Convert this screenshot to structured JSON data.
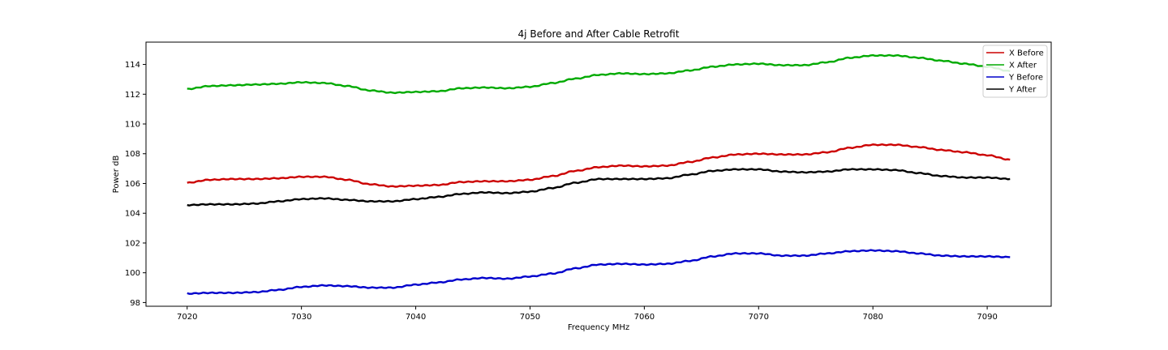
{
  "chart_data": {
    "type": "line",
    "title": "4j Before and After Cable Retrofit",
    "xlabel": "Frequency MHz",
    "ylabel": "Power dB",
    "xlim": [
      7016.4,
      7095.6
    ],
    "ylim": [
      97.75,
      115.5
    ],
    "xticks": [
      7020,
      7030,
      7040,
      7050,
      7060,
      7070,
      7080,
      7090
    ],
    "yticks": [
      98,
      100,
      102,
      104,
      106,
      108,
      110,
      112,
      114
    ],
    "grid": false,
    "legend_position": "top-right",
    "x": [
      7020,
      7022,
      7024,
      7026,
      7028,
      7030,
      7032,
      7034,
      7036,
      7038,
      7040,
      7042,
      7044,
      7046,
      7048,
      7050,
      7052,
      7054,
      7056,
      7058,
      7060,
      7062,
      7064,
      7066,
      7068,
      7070,
      7072,
      7074,
      7076,
      7078,
      7080,
      7082,
      7084,
      7086,
      7088,
      7090,
      7092
    ],
    "series": [
      {
        "name": "X Before",
        "color": "#cc0000",
        "values": [
          106.05,
          106.25,
          106.3,
          106.3,
          106.35,
          106.45,
          106.45,
          106.25,
          105.95,
          105.8,
          105.85,
          105.9,
          106.1,
          106.15,
          106.15,
          106.25,
          106.5,
          106.85,
          107.1,
          107.2,
          107.15,
          107.2,
          107.45,
          107.75,
          107.95,
          108.0,
          107.95,
          107.95,
          108.1,
          108.4,
          108.6,
          108.6,
          108.45,
          108.25,
          108.1,
          107.9,
          107.6
        ]
      },
      {
        "name": "X After",
        "color": "#00aa00",
        "values": [
          112.35,
          112.55,
          112.6,
          112.65,
          112.7,
          112.8,
          112.75,
          112.55,
          112.25,
          112.1,
          112.15,
          112.2,
          112.4,
          112.45,
          112.4,
          112.5,
          112.75,
          113.05,
          113.3,
          113.4,
          113.35,
          113.4,
          113.6,
          113.85,
          114.0,
          114.05,
          113.95,
          113.95,
          114.15,
          114.45,
          114.6,
          114.6,
          114.45,
          114.25,
          114.05,
          113.85,
          113.55
        ]
      },
      {
        "name": "Y Before",
        "color": "#0000cc",
        "values": [
          98.6,
          98.65,
          98.65,
          98.7,
          98.85,
          99.05,
          99.15,
          99.1,
          99.0,
          99.0,
          99.2,
          99.35,
          99.55,
          99.65,
          99.6,
          99.75,
          99.95,
          100.3,
          100.55,
          100.6,
          100.55,
          100.6,
          100.8,
          101.1,
          101.3,
          101.3,
          101.15,
          101.15,
          101.3,
          101.45,
          101.5,
          101.45,
          101.3,
          101.15,
          101.1,
          101.1,
          101.05
        ]
      },
      {
        "name": "Y After",
        "color": "#000000",
        "values": [
          104.55,
          104.6,
          104.6,
          104.65,
          104.8,
          104.95,
          105.0,
          104.9,
          104.8,
          104.8,
          104.95,
          105.1,
          105.3,
          105.4,
          105.35,
          105.45,
          105.7,
          106.05,
          106.3,
          106.3,
          106.3,
          106.35,
          106.6,
          106.85,
          106.95,
          106.95,
          106.8,
          106.75,
          106.8,
          106.95,
          106.95,
          106.9,
          106.7,
          106.5,
          106.4,
          106.4,
          106.3
        ]
      }
    ]
  }
}
